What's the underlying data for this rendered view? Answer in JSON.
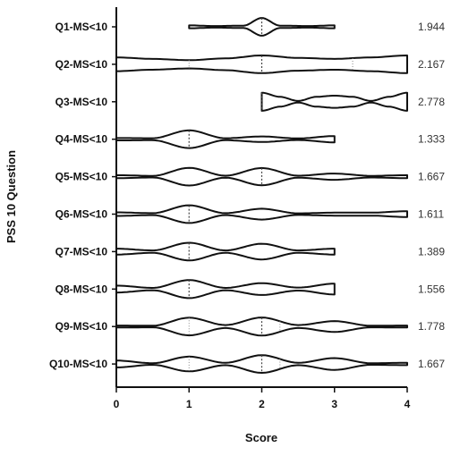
{
  "chart_data": {
    "type": "violin",
    "orientation": "horizontal",
    "xlabel": "Score",
    "ylabel": "PSS 10 Question",
    "xlim": [
      0,
      4
    ],
    "xticks": [
      "0",
      "1",
      "2",
      "3",
      "4"
    ],
    "grid": false,
    "line_color": "#111111",
    "fill_color": "#ffffff",
    "series": [
      {
        "name": "Q1-MS<10",
        "mean_label": "1.944",
        "range": [
          1,
          3
        ],
        "median": 2,
        "density": [
          [
            1.0,
            0.15
          ],
          [
            1.35,
            0.08
          ],
          [
            1.75,
            0.12
          ],
          [
            2.0,
            0.9
          ],
          [
            2.25,
            0.12
          ],
          [
            2.65,
            0.08
          ],
          [
            3.0,
            0.15
          ]
        ]
      },
      {
        "name": "Q2-MS<10",
        "mean_label": "2.167",
        "range": [
          0,
          4
        ],
        "median": 2,
        "quartiles": [
          1,
          3.25
        ],
        "density": [
          [
            0.0,
            0.7
          ],
          [
            0.5,
            0.55
          ],
          [
            1.0,
            0.42
          ],
          [
            1.5,
            0.6
          ],
          [
            2.0,
            0.9
          ],
          [
            2.5,
            0.65
          ],
          [
            3.0,
            0.55
          ],
          [
            3.5,
            0.7
          ],
          [
            4.0,
            0.9
          ]
        ]
      },
      {
        "name": "Q3-MS<10",
        "mean_label": "2.778",
        "range": [
          2,
          4
        ],
        "median": 2,
        "density": [
          [
            2.0,
            0.92
          ],
          [
            2.25,
            0.5
          ],
          [
            2.5,
            0.08
          ],
          [
            2.75,
            0.5
          ],
          [
            3.0,
            0.62
          ],
          [
            3.25,
            0.5
          ],
          [
            3.5,
            0.08
          ],
          [
            3.75,
            0.5
          ],
          [
            4.0,
            0.92
          ]
        ]
      },
      {
        "name": "Q4-MS<10",
        "mean_label": "1.333",
        "range": [
          0,
          3
        ],
        "median": 1,
        "density": [
          [
            0.0,
            0.12
          ],
          [
            0.5,
            0.1
          ],
          [
            1.0,
            0.9
          ],
          [
            1.5,
            0.1
          ],
          [
            2.0,
            0.28
          ],
          [
            2.5,
            0.08
          ],
          [
            3.0,
            0.32
          ]
        ]
      },
      {
        "name": "Q5-MS<10",
        "mean_label": "1.667",
        "range": [
          0,
          4
        ],
        "median": 2,
        "density": [
          [
            0.0,
            0.15
          ],
          [
            0.5,
            0.08
          ],
          [
            1.0,
            0.9
          ],
          [
            1.5,
            0.1
          ],
          [
            2.0,
            0.88
          ],
          [
            2.5,
            0.1
          ],
          [
            3.0,
            0.32
          ],
          [
            3.5,
            0.08
          ],
          [
            4.0,
            0.15
          ]
        ]
      },
      {
        "name": "Q6-MS<10",
        "mean_label": "1.611",
        "range": [
          0,
          4
        ],
        "median": 1,
        "density": [
          [
            0.0,
            0.18
          ],
          [
            0.5,
            0.1
          ],
          [
            1.0,
            0.9
          ],
          [
            1.5,
            0.1
          ],
          [
            2.0,
            0.55
          ],
          [
            2.5,
            0.08
          ],
          [
            3.0,
            0.15
          ],
          [
            3.5,
            0.15
          ],
          [
            4.0,
            0.3
          ]
        ]
      },
      {
        "name": "Q7-MS<10",
        "mean_label": "1.389",
        "range": [
          0,
          3
        ],
        "median": 1,
        "density": [
          [
            0.0,
            0.3
          ],
          [
            0.5,
            0.12
          ],
          [
            1.0,
            0.9
          ],
          [
            1.5,
            0.12
          ],
          [
            2.0,
            0.8
          ],
          [
            2.5,
            0.12
          ],
          [
            3.0,
            0.3
          ]
        ]
      },
      {
        "name": "Q8-MS<10",
        "mean_label": "1.556",
        "range": [
          0,
          3
        ],
        "median": 1,
        "density": [
          [
            0.0,
            0.35
          ],
          [
            0.5,
            0.12
          ],
          [
            1.0,
            0.92
          ],
          [
            1.5,
            0.12
          ],
          [
            2.0,
            0.6
          ],
          [
            2.5,
            0.15
          ],
          [
            3.0,
            0.55
          ]
        ]
      },
      {
        "name": "Q9-MS<10",
        "mean_label": "1.778",
        "range": [
          0,
          4
        ],
        "median": 2,
        "quartiles": [
          1,
          2.25
        ],
        "density": [
          [
            0.0,
            0.1
          ],
          [
            0.5,
            0.08
          ],
          [
            1.0,
            0.9
          ],
          [
            1.5,
            0.15
          ],
          [
            2.0,
            0.92
          ],
          [
            2.5,
            0.15
          ],
          [
            3.0,
            0.55
          ],
          [
            3.5,
            0.08
          ],
          [
            4.0,
            0.1
          ]
        ]
      },
      {
        "name": "Q10-MS<10",
        "mean_label": "1.667",
        "range": [
          0,
          4
        ],
        "median": 2,
        "quartiles": [
          1,
          2.25
        ],
        "density": [
          [
            0.0,
            0.35
          ],
          [
            0.5,
            0.08
          ],
          [
            1.0,
            0.75
          ],
          [
            1.5,
            0.12
          ],
          [
            2.0,
            0.9
          ],
          [
            2.5,
            0.12
          ],
          [
            3.0,
            0.6
          ],
          [
            3.5,
            0.08
          ],
          [
            4.0,
            0.12
          ]
        ]
      }
    ]
  }
}
